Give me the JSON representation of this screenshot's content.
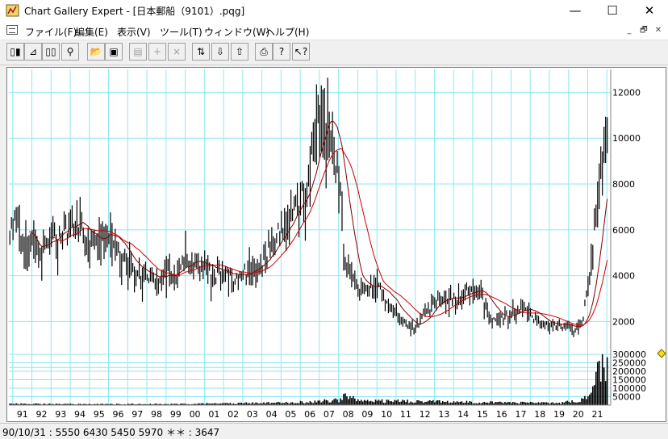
{
  "window": {
    "title": "Chart Gallery Expert - [日本郵船（9101）.pqg]",
    "minimize": "—",
    "maximize": "☐",
    "close": "✕"
  },
  "menu": {
    "items": [
      "ファイル(F)",
      "編集(E)",
      "表示(V)",
      "ツール(T)",
      "ウィンドウ(W)",
      "ヘルプ(H)"
    ],
    "doc_minimize": "_",
    "doc_restore": "🗗",
    "doc_close": "✕"
  },
  "toolbar": {
    "buttons": [
      {
        "icon": "candlestick-chart-icon",
        "glyph": "▯▮"
      },
      {
        "icon": "step-line-icon",
        "glyph": "⊿"
      },
      {
        "icon": "two-panel-icon",
        "glyph": "▯▯"
      },
      {
        "icon": "binoculars-icon",
        "glyph": "⚲"
      },
      {
        "icon": "open-folder-icon",
        "glyph": "📂"
      },
      {
        "icon": "save-disk-icon",
        "glyph": "▣"
      },
      {
        "icon": "properties-icon",
        "glyph": "▤",
        "disabled": true
      },
      {
        "icon": "add-icon",
        "glyph": "+",
        "disabled": true
      },
      {
        "icon": "delete-icon",
        "glyph": "×",
        "disabled": true
      },
      {
        "icon": "scale-icon",
        "glyph": "⇅"
      },
      {
        "icon": "download-arrow-icon",
        "glyph": "⇩"
      },
      {
        "icon": "upload-arrow-icon",
        "glyph": "⇧"
      },
      {
        "icon": "print-icon",
        "glyph": "⎙"
      },
      {
        "icon": "help-icon",
        "glyph": "?"
      },
      {
        "icon": "context-help-icon",
        "glyph": "↖?"
      }
    ]
  },
  "status": {
    "text": "90/10/31 : 5550 6430 5450 5970 ＊＊ : 3647"
  },
  "chart_data": {
    "type": "candlestick",
    "price_axis": {
      "ticks": [
        "12000",
        "10000",
        "8000",
        "6000",
        "4000",
        "2000"
      ],
      "ylim": [
        -1400,
        13000
      ]
    },
    "volume_axis": {
      "ticks": [
        "300000",
        "250000",
        "200000",
        "150000",
        "100000",
        "50000"
      ],
      "ylim": [
        0,
        300000
      ]
    },
    "x_axis": {
      "ticks": [
        "91",
        "92",
        "93",
        "94",
        "95",
        "96",
        "97",
        "98",
        "99",
        "00",
        "01",
        "02",
        "03",
        "04",
        "05",
        "06",
        "07",
        "08",
        "09",
        "10",
        "11",
        "12",
        "13",
        "14",
        "15",
        "16",
        "17",
        "18",
        "19",
        "20",
        "21"
      ],
      "xlim": [
        1990.8,
        2022.2
      ]
    },
    "grid": true,
    "price_keypoints": [
      [
        1990.85,
        5970
      ],
      [
        1991.2,
        6800
      ],
      [
        1991.6,
        5200
      ],
      [
        1992.0,
        5400
      ],
      [
        1992.5,
        5000
      ],
      [
        1993.0,
        6200
      ],
      [
        1993.5,
        5700
      ],
      [
        1994.0,
        6300
      ],
      [
        1994.5,
        6400
      ],
      [
        1995.0,
        5300
      ],
      [
        1995.5,
        5800
      ],
      [
        1996.0,
        6100
      ],
      [
        1996.5,
        5000
      ],
      [
        1997.0,
        4600
      ],
      [
        1997.5,
        4000
      ],
      [
        1998.0,
        4200
      ],
      [
        1998.5,
        3600
      ],
      [
        1999.0,
        4300
      ],
      [
        1999.5,
        4000
      ],
      [
        2000.0,
        5000
      ],
      [
        2000.5,
        4400
      ],
      [
        2001.0,
        4500
      ],
      [
        2001.5,
        4100
      ],
      [
        2002.0,
        4300
      ],
      [
        2002.5,
        3800
      ],
      [
        2003.0,
        4100
      ],
      [
        2003.5,
        4300
      ],
      [
        2004.0,
        4700
      ],
      [
        2004.5,
        5500
      ],
      [
        2005.0,
        6000
      ],
      [
        2005.5,
        7000
      ],
      [
        2006.0,
        7500
      ],
      [
        2006.5,
        8500
      ],
      [
        2006.9,
        11000
      ],
      [
        2007.2,
        12000
      ],
      [
        2007.5,
        10500
      ],
      [
        2007.8,
        9500
      ],
      [
        2008.1,
        8000
      ],
      [
        2008.3,
        4500
      ],
      [
        2008.7,
        4200
      ],
      [
        2009.0,
        3500
      ],
      [
        2009.5,
        3600
      ],
      [
        2010.0,
        3700
      ],
      [
        2010.5,
        2800
      ],
      [
        2011.0,
        2500
      ],
      [
        2011.5,
        1900
      ],
      [
        2012.0,
        1700
      ],
      [
        2012.3,
        2200
      ],
      [
        2012.7,
        2500
      ],
      [
        2013.0,
        3000
      ],
      [
        2013.5,
        3100
      ],
      [
        2014.0,
        3000
      ],
      [
        2014.5,
        3200
      ],
      [
        2015.0,
        3600
      ],
      [
        2015.5,
        3100
      ],
      [
        2016.0,
        2000
      ],
      [
        2016.5,
        2200
      ],
      [
        2017.0,
        2400
      ],
      [
        2017.5,
        2700
      ],
      [
        2018.0,
        2300
      ],
      [
        2018.5,
        2000
      ],
      [
        2019.0,
        1800
      ],
      [
        2019.5,
        1900
      ],
      [
        2020.0,
        1800
      ],
      [
        2020.3,
        1500
      ],
      [
        2020.7,
        2000
      ],
      [
        2021.0,
        3500
      ],
      [
        2021.3,
        5500
      ],
      [
        2021.6,
        8500
      ],
      [
        2021.9,
        10000
      ],
      [
        2022.05,
        11200
      ]
    ],
    "volume_keypoints": [
      [
        1990.85,
        8000
      ],
      [
        1995.0,
        6000
      ],
      [
        2000.0,
        7000
      ],
      [
        2004.5,
        14000
      ],
      [
        2006.9,
        22000
      ],
      [
        2008.0,
        30000
      ],
      [
        2008.3,
        60000
      ],
      [
        2009.0,
        28000
      ],
      [
        2011.5,
        24000
      ],
      [
        2015.0,
        18000
      ],
      [
        2019.5,
        12000
      ],
      [
        2020.7,
        30000
      ],
      [
        2021.3,
        130000
      ],
      [
        2021.7,
        260000
      ],
      [
        2022.05,
        210000
      ]
    ],
    "moving_averages": [
      {
        "color": "#800000",
        "window": 13
      },
      {
        "color": "#cc0000",
        "window": 26
      }
    ]
  }
}
